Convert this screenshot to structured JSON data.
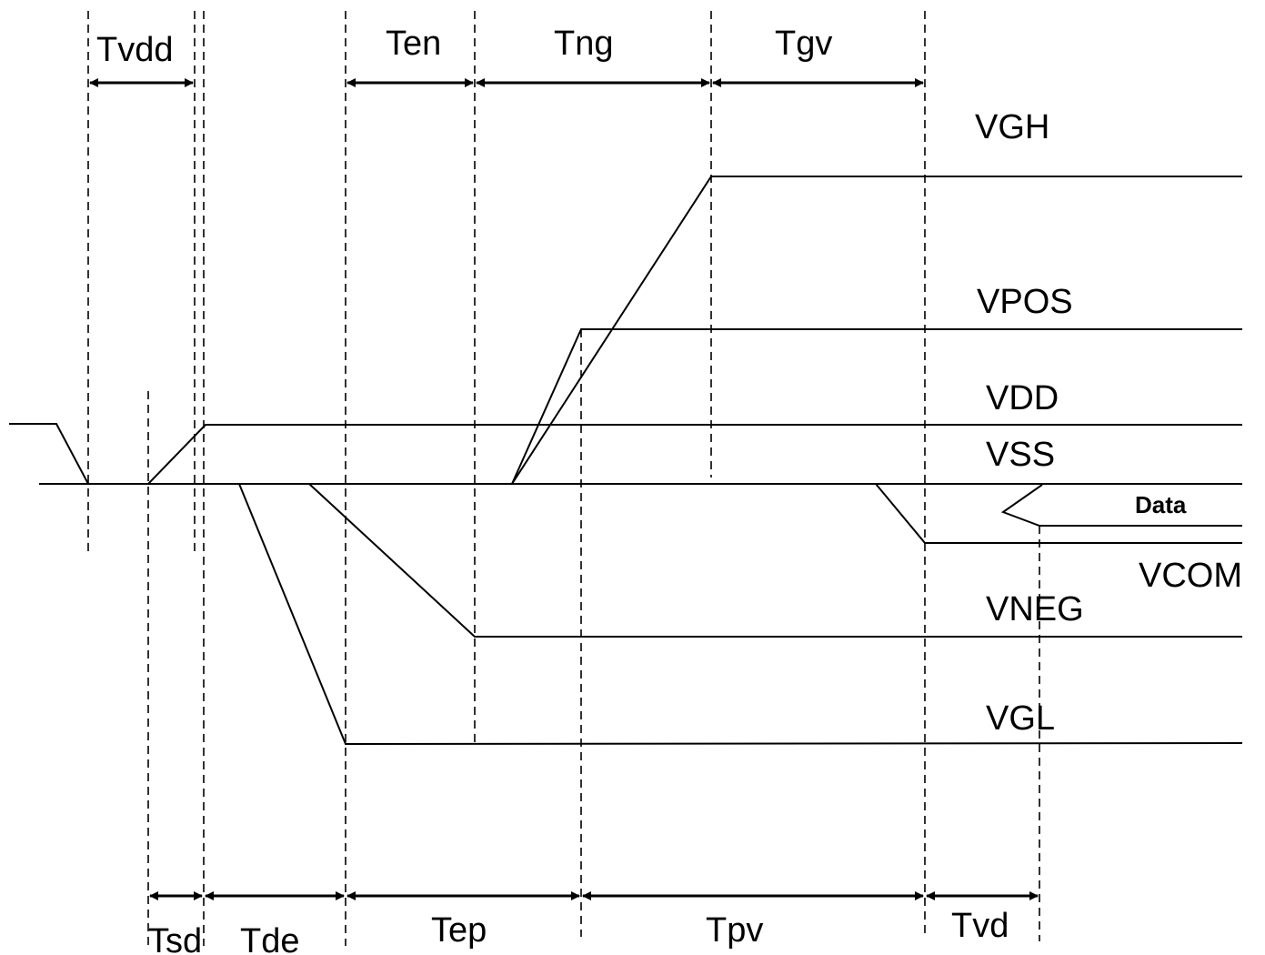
{
  "top_timings": {
    "tvdd": "Tvdd",
    "ten": "Ten",
    "tng": "Tng",
    "tgv": "Tgv"
  },
  "bottom_timings": {
    "tsd": "Tsd",
    "tde": "Tde",
    "tep": "Tep",
    "tpv": "Tpv",
    "tvd": "Tvd"
  },
  "signals": {
    "vgh": "VGH",
    "vpos": "VPOS",
    "vdd": "VDD",
    "vss": "VSS",
    "data": "Data",
    "vcom": "VCOM",
    "vneg": "VNEG",
    "vgl": "VGL"
  }
}
